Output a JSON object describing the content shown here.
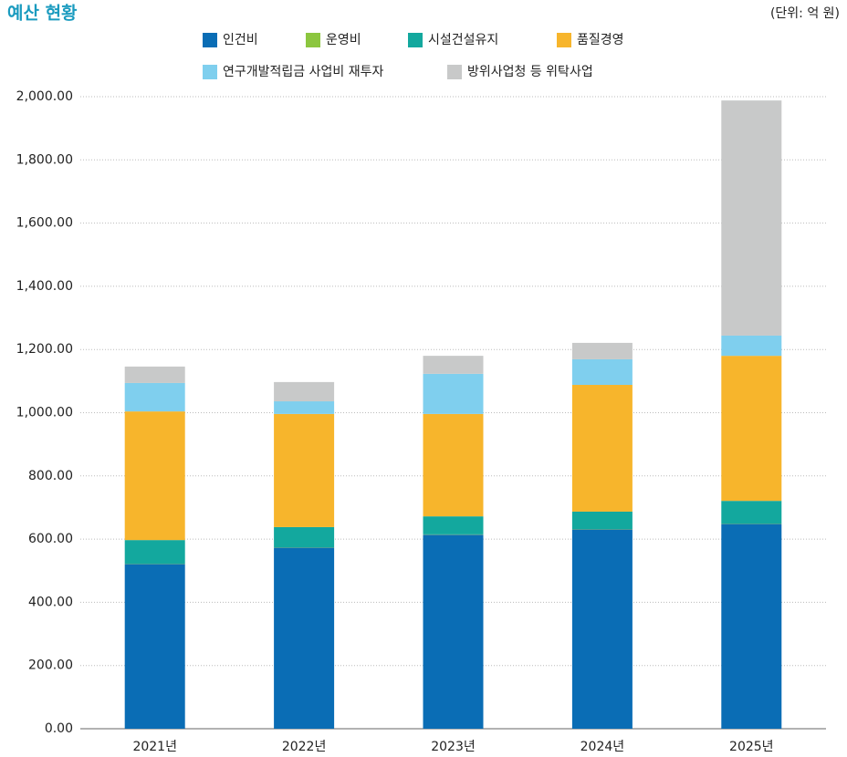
{
  "chart_data": {
    "type": "stacked_bar",
    "title": "예산 현황",
    "subtitle": "(단위: 억 원)",
    "categories": [
      "2021년",
      "2022년",
      "2023년",
      "2024년",
      "2025년"
    ],
    "series": [
      {
        "name": "인건비",
        "color": "#0a6db5",
        "values": [
          521,
          573,
          614,
          631,
          648
        ]
      },
      {
        "name": "운영비",
        "color": "#8cc63f",
        "values": [
          1,
          1,
          1,
          1,
          1
        ]
      },
      {
        "name": "시설건설유지",
        "color": "#13a89e",
        "values": [
          75,
          64,
          57,
          55,
          72
        ]
      },
      {
        "name": "품질경영",
        "color": "#f7b52c",
        "values": [
          407,
          358,
          324,
          401,
          459
        ]
      },
      {
        "name": "연구개발적립금 사업비 재투자",
        "color": "#7fcfee",
        "values": [
          90,
          40,
          127,
          81,
          64
        ]
      },
      {
        "name": "방위사업청 등 위탁사업",
        "color": "#c8c9c9",
        "values": [
          52,
          61,
          57,
          52,
          744
        ]
      }
    ],
    "ylim": [
      0,
      2000
    ],
    "yticks": [
      {
        "value": 0,
        "label": "0.00"
      },
      {
        "value": 200,
        "label": "200.00"
      },
      {
        "value": 400,
        "label": "400.00"
      },
      {
        "value": 600,
        "label": "600.00"
      },
      {
        "value": 800,
        "label": "800.00"
      },
      {
        "value": 1000,
        "label": "1,000.00"
      },
      {
        "value": 1200,
        "label": "1,200.00"
      },
      {
        "value": 1400,
        "label": "1,400.00"
      },
      {
        "value": 1600,
        "label": "1,600.00"
      },
      {
        "value": 1800,
        "label": "1,800.00"
      },
      {
        "value": 2000,
        "label": "2,000.00"
      }
    ],
    "grid": true
  }
}
